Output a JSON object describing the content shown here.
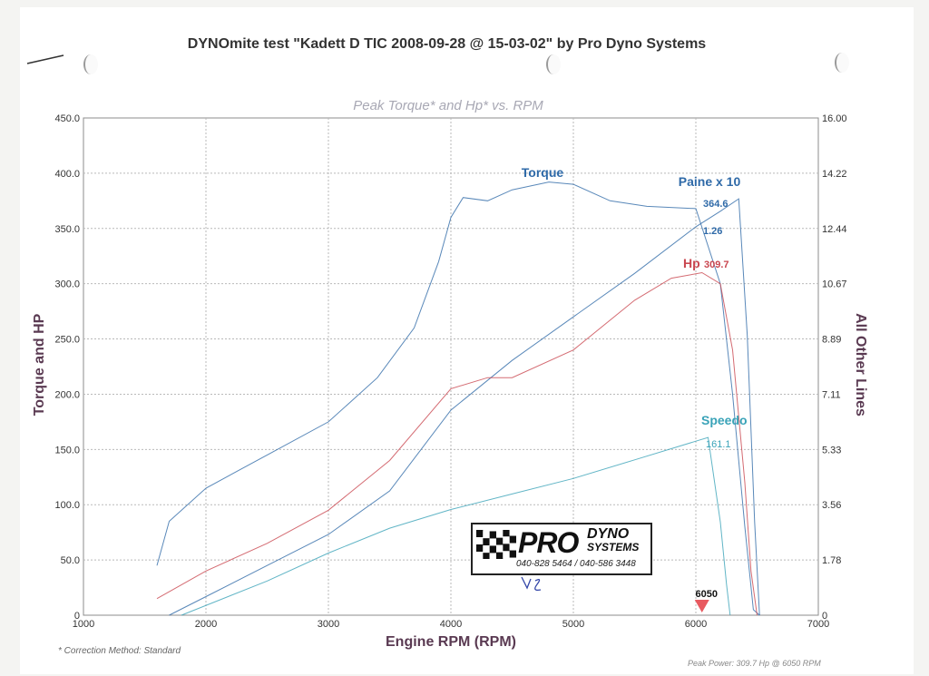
{
  "page": {
    "title": "DYNOmite test \"Kadett D TIC 2008-09-28 @ 15-03-02\" by Pro Dyno Systems",
    "footnote": "* Correction Method: Standard",
    "peak_note": "Peak Power: 309.7 Hp @ 6050 RPM"
  },
  "logo": {
    "brand": "PRO",
    "sub_line1": "DYNO",
    "sub_line2": "SYSTEMS",
    "phone": "040-828 5464 / 040-586 3448"
  },
  "colors": {
    "torque": "#2f6aa8",
    "paine": "#2f6aa8",
    "hp": "#c9464f",
    "speedo": "#3aa3b8",
    "grid": "#b9b9b9",
    "axis_label": "#5a3a52",
    "subtitle": "#a8a8b4",
    "marker": "#e85a60"
  },
  "chart_data": {
    "type": "line",
    "title": "Peak Torque* and Hp* vs. RPM",
    "xlabel": "Engine RPM (RPM)",
    "ylabel": "Torque and HP",
    "y2label": "All Other Lines",
    "xlim": [
      1000,
      7000
    ],
    "ylim": [
      0,
      450
    ],
    "y2lim": [
      0,
      16
    ],
    "grid": true,
    "x_ticks": [
      "1000",
      "2000",
      "3000",
      "4000",
      "5000",
      "6000",
      "7000"
    ],
    "y_ticks": [
      "0",
      "50.0",
      "100.0",
      "150.0",
      "200.0",
      "250.0",
      "300.0",
      "350.0",
      "400.0",
      "450.0"
    ],
    "y2_ticks": [
      "0",
      "1.78",
      "3.56",
      "5.33",
      "7.11",
      "8.89",
      "10.67",
      "12.44",
      "14.22",
      "16.00"
    ],
    "marker_label": "6050",
    "marker_x": 6050,
    "series": [
      {
        "name": "Torque",
        "label": "Torque",
        "color_key": "torque",
        "peak_label": "",
        "x": [
          1600,
          1700,
          2000,
          2500,
          3000,
          3400,
          3700,
          3900,
          4000,
          4100,
          4300,
          4500,
          4800,
          5000,
          5300,
          5600,
          6000,
          6200,
          6300,
          6400,
          6470,
          6520
        ],
        "y": [
          45,
          85,
          115,
          145,
          175,
          215,
          260,
          320,
          360,
          378,
          375,
          385,
          392,
          390,
          375,
          370,
          368,
          300,
          200,
          80,
          5,
          0
        ]
      },
      {
        "name": "Paine x 10",
        "label": "Paine x 10",
        "color_key": "paine",
        "peak_label": "364.6",
        "sub_label": "1.26",
        "x": [
          1700,
          2000,
          2500,
          3000,
          3500,
          4000,
          4500,
          5000,
          5500,
          6000,
          6200,
          6350,
          6420,
          6480,
          6520
        ],
        "y": [
          0.0,
          0.6,
          1.6,
          2.6,
          4.0,
          6.6,
          8.2,
          9.6,
          11.0,
          12.5,
          13.0,
          13.4,
          9.0,
          3.0,
          0.0
        ]
      },
      {
        "name": "Hp",
        "label": "Hp",
        "color_key": "hp",
        "peak_label": "309.7",
        "x": [
          1600,
          2000,
          2500,
          3000,
          3500,
          4000,
          4300,
          4500,
          5000,
          5500,
          5800,
          6050,
          6200,
          6300,
          6400,
          6450,
          6500
        ],
        "y": [
          15,
          40,
          65,
          95,
          140,
          205,
          215,
          215,
          240,
          285,
          305,
          310,
          300,
          240,
          120,
          40,
          0
        ]
      },
      {
        "name": "Speedo",
        "label": "Speedo",
        "color_key": "speedo",
        "peak_label": "161.1",
        "x": [
          1800,
          2500,
          3000,
          3500,
          4000,
          4500,
          5000,
          5500,
          6000,
          6100,
          6200,
          6250,
          6280
        ],
        "y": [
          0.0,
          1.1,
          2.0,
          2.8,
          3.4,
          3.9,
          4.4,
          5.0,
          5.6,
          5.72,
          3.0,
          1.0,
          0.0
        ]
      }
    ]
  }
}
